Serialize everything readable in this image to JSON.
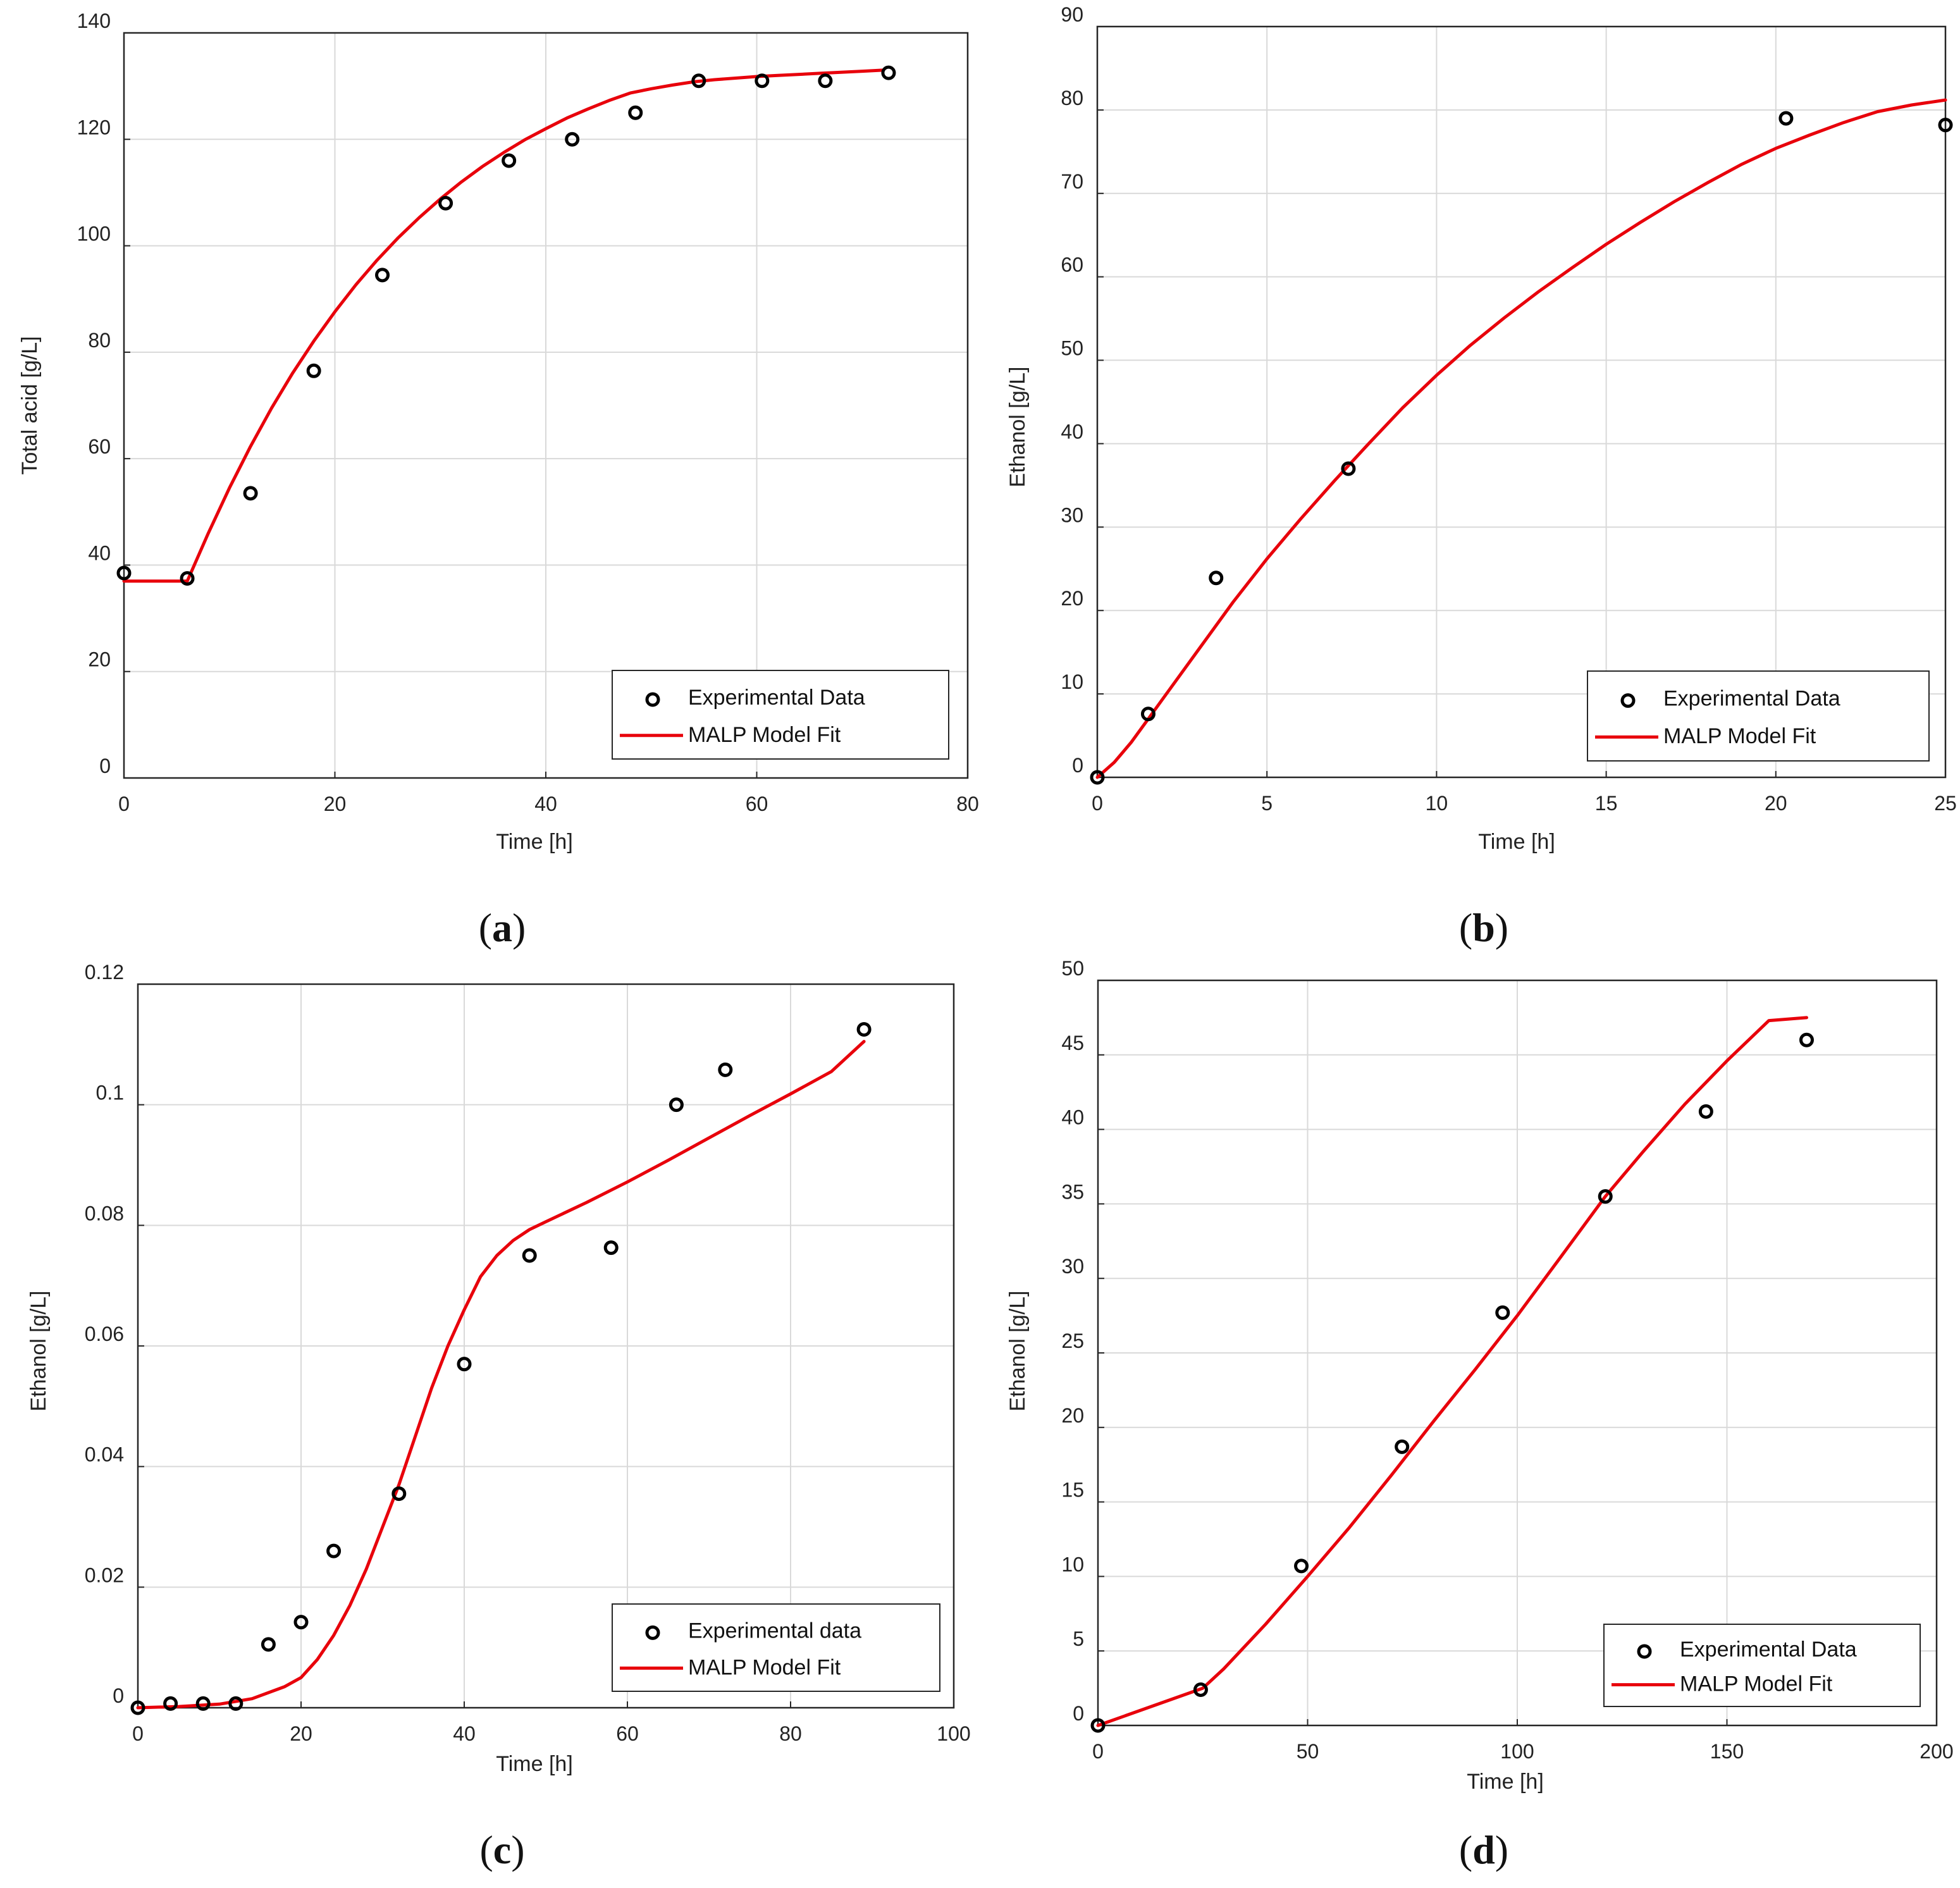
{
  "chart_data": [
    {
      "id": "a",
      "type": "scatter",
      "panel_label": "a",
      "xlabel": "Time [h]",
      "ylabel": "Total acid [g/L]",
      "xlim": [
        0,
        80
      ],
      "ylim": [
        0,
        140
      ],
      "xticks": [
        0,
        20,
        40,
        60,
        80
      ],
      "yticks": [
        0,
        20,
        40,
        60,
        80,
        100,
        120,
        140
      ],
      "grid": true,
      "legend_position": "bottom-right",
      "series": [
        {
          "name": "Experimental Data",
          "kind": "markers",
          "x": [
            0,
            6,
            12,
            18,
            24.5,
            30.5,
            36.5,
            42.5,
            48.5,
            54.5,
            60.5,
            66.5,
            72.5
          ],
          "y": [
            38.5,
            37.5,
            53.5,
            76.5,
            94.5,
            108,
            116,
            120,
            125,
            131,
            131,
            131,
            132.5
          ]
        },
        {
          "name": "MALP Model Fit",
          "kind": "line",
          "color": "#e8000b",
          "x": [
            0,
            6,
            8,
            10,
            12,
            14,
            16,
            18,
            20,
            22,
            24,
            26,
            28,
            30,
            32,
            34,
            36,
            38,
            40,
            42,
            44,
            46,
            48,
            50,
            52,
            54,
            56,
            58,
            60,
            62,
            64,
            66,
            68,
            70,
            72
          ],
          "y": [
            37,
            37,
            46,
            54.5,
            62.3,
            69.5,
            76.1,
            82.1,
            87.6,
            92.7,
            97.3,
            101.5,
            105.3,
            108.8,
            112,
            114.9,
            117.5,
            119.9,
            122,
            124,
            125.7,
            127.3,
            128.7,
            129.5,
            130.2,
            130.8,
            131.2,
            131.5,
            131.8,
            132,
            132.2,
            132.4,
            132.6,
            132.8,
            133
          ]
        }
      ]
    },
    {
      "id": "b",
      "type": "scatter",
      "panel_label": "b",
      "xlabel": "Time [h]",
      "ylabel": "Ethanol [g/L]",
      "xlim": [
        0,
        25
      ],
      "ylim": [
        0,
        90
      ],
      "xticks": [
        0,
        5,
        10,
        15,
        20,
        25
      ],
      "yticks": [
        0,
        10,
        20,
        30,
        40,
        50,
        60,
        70,
        80,
        90
      ],
      "grid": true,
      "legend_position": "bottom-right",
      "series": [
        {
          "name": "Experimental Data",
          "kind": "markers",
          "x": [
            0,
            1.5,
            3.5,
            7.4,
            20.3,
            25
          ],
          "y": [
            0,
            7.6,
            23.9,
            37,
            79,
            78.2
          ]
        },
        {
          "name": "MALP Model Fit",
          "kind": "line",
          "color": "#e8000b",
          "x": [
            0,
            0.5,
            1,
            1.5,
            2,
            3,
            4,
            5,
            6,
            7,
            8,
            9,
            10,
            11,
            12,
            13,
            14,
            15,
            16,
            17,
            18,
            19,
            20,
            21,
            22,
            23,
            24,
            25
          ],
          "y": [
            0,
            1.8,
            4.2,
            7,
            9.8,
            15.4,
            21,
            26.2,
            31,
            35.6,
            40,
            44.3,
            48.2,
            51.8,
            55.1,
            58.2,
            61.1,
            63.9,
            66.5,
            69,
            71.3,
            73.5,
            75.4,
            77,
            78.5,
            79.8,
            80.6,
            81.2
          ]
        }
      ]
    },
    {
      "id": "c",
      "type": "scatter",
      "panel_label": "c",
      "xlabel": "Time [h]",
      "ylabel": "Ethanol [g/L]",
      "xlim": [
        0,
        100
      ],
      "ylim": [
        0,
        0.12
      ],
      "xticks": [
        0,
        20,
        40,
        60,
        80,
        100
      ],
      "yticks": [
        0,
        0.02,
        0.04,
        0.06,
        0.08,
        0.1,
        0.12
      ],
      "ytick_labels": [
        "0",
        "0.02",
        "0.04",
        "0.06",
        "0.08",
        "0.1",
        "0.12"
      ],
      "grid": true,
      "legend_position": "bottom-right",
      "series": [
        {
          "name": "Experimental data",
          "kind": "markers",
          "x": [
            0,
            4,
            8,
            12,
            16,
            20,
            24,
            32,
            40,
            48,
            58,
            66,
            72,
            89
          ],
          "y": [
            0,
            0.0007,
            0.0007,
            0.0007,
            0.0105,
            0.0142,
            0.026,
            0.0355,
            0.057,
            0.075,
            0.0763,
            0.1,
            0.1058,
            0.1125
          ]
        },
        {
          "name": "MALP Model Fit",
          "kind": "line",
          "color": "#e8000b",
          "x": [
            0,
            5,
            10,
            14,
            18,
            20,
            22,
            24,
            26,
            28,
            30,
            32,
            34,
            36,
            38,
            40,
            42,
            44,
            46,
            48,
            50,
            55,
            60,
            65,
            70,
            75,
            80,
            85,
            89
          ],
          "y": [
            0,
            0.0002,
            0.0006,
            0.0015,
            0.0035,
            0.005,
            0.008,
            0.012,
            0.017,
            0.023,
            0.03,
            0.037,
            0.045,
            0.053,
            0.06,
            0.066,
            0.0715,
            0.075,
            0.0775,
            0.0793,
            0.0806,
            0.0838,
            0.0872,
            0.0908,
            0.0945,
            0.0982,
            0.1018,
            0.1055,
            0.1105
          ]
        }
      ]
    },
    {
      "id": "d",
      "type": "scatter",
      "panel_label": "d",
      "xlabel": "Time [h]",
      "ylabel": "Ethanol [g/L]",
      "xlim": [
        0,
        200
      ],
      "ylim": [
        0,
        50
      ],
      "xticks": [
        0,
        50,
        100,
        150,
        200
      ],
      "yticks": [
        0,
        5,
        10,
        15,
        20,
        25,
        30,
        35,
        40,
        45,
        50
      ],
      "grid": true,
      "legend_position": "bottom-right",
      "series": [
        {
          "name": "Experimental Data",
          "kind": "markers",
          "x": [
            0,
            24.5,
            48.5,
            72.5,
            96.5,
            121,
            145,
            169
          ],
          "y": [
            0,
            2.4,
            10.7,
            18.7,
            27.7,
            35.5,
            41.2,
            46
          ]
        },
        {
          "name": "MALP Model Fit",
          "kind": "line",
          "color": "#e8000b",
          "x": [
            0,
            25,
            30,
            40,
            50,
            60,
            70,
            80,
            90,
            100,
            110,
            121,
            130,
            140,
            150,
            160,
            169
          ],
          "y": [
            0,
            2.5,
            3.8,
            6.8,
            10,
            13.3,
            16.8,
            20.4,
            23.9,
            27.5,
            31.3,
            35.5,
            38.5,
            41.7,
            44.6,
            47.3,
            47.5
          ]
        }
      ]
    }
  ]
}
